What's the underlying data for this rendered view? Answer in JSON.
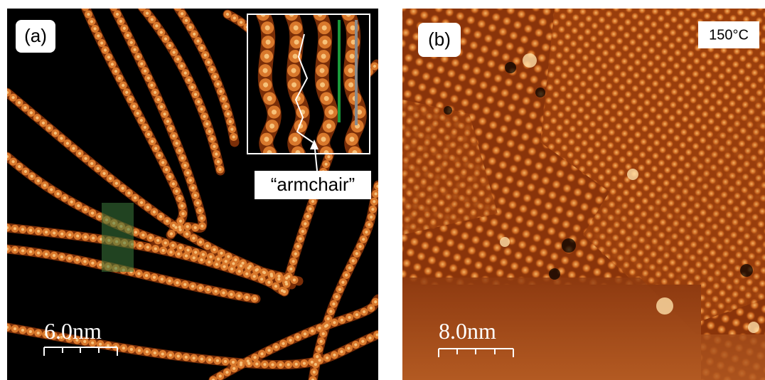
{
  "panels": [
    {
      "label": "(a)",
      "scale_bar": "6.0nm",
      "inset_annotation": "“armchair”"
    },
    {
      "label": "(b)",
      "scale_bar": "8.0nm",
      "temperature": "150°C"
    }
  ]
}
